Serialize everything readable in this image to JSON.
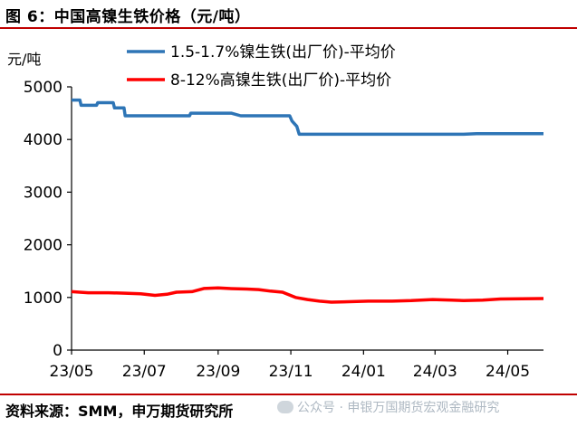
{
  "figure": {
    "title": "图 6：中国高镍生铁价格（元/吨）",
    "source": "资料来源：SMM，申万期货研究所",
    "watermark": "公众号 · 申银万国期货宏观金融研究",
    "watermark_icon": "wechat-icon"
  },
  "colors": {
    "series_1": "#2e75b6",
    "series_2": "#ff0000",
    "rule": "#c00000"
  },
  "chart_data": {
    "type": "line",
    "title": "",
    "ylabel": "元/吨",
    "xlabel": "",
    "ylim": [
      0,
      5000
    ],
    "yticks": [
      0,
      1000,
      2000,
      3000,
      4000,
      5000
    ],
    "xlim": [
      "2023-05-01",
      "2024-05-31"
    ],
    "xticks": [
      {
        "date": "2023-05-01",
        "label": "23/05"
      },
      {
        "date": "2023-07-01",
        "label": "23/07"
      },
      {
        "date": "2023-09-01",
        "label": "23/09"
      },
      {
        "date": "2023-11-01",
        "label": "23/11"
      },
      {
        "date": "2024-01-01",
        "label": "24/01"
      },
      {
        "date": "2024-03-01",
        "label": "24/03"
      },
      {
        "date": "2024-05-01",
        "label": "24/05"
      }
    ],
    "grid": false,
    "legend_position": "top",
    "series": [
      {
        "name": "1.5-1.7%镍生铁(出厂价)-平均价",
        "points": [
          [
            "2023-05-01",
            4750
          ],
          [
            "2023-05-08",
            4750
          ],
          [
            "2023-05-09",
            4650
          ],
          [
            "2023-05-22",
            4650
          ],
          [
            "2023-05-23",
            4700
          ],
          [
            "2023-06-05",
            4700
          ],
          [
            "2023-06-06",
            4600
          ],
          [
            "2023-06-14",
            4600
          ],
          [
            "2023-06-15",
            4450
          ],
          [
            "2023-08-08",
            4450
          ],
          [
            "2023-08-09",
            4500
          ],
          [
            "2023-09-12",
            4500
          ],
          [
            "2023-09-20",
            4450
          ],
          [
            "2023-10-31",
            4450
          ],
          [
            "2023-11-02",
            4350
          ],
          [
            "2023-11-06",
            4250
          ],
          [
            "2023-11-08",
            4100
          ],
          [
            "2024-02-20",
            4100
          ],
          [
            "2024-03-25",
            4100
          ],
          [
            "2024-04-05",
            4110
          ],
          [
            "2024-05-31",
            4110
          ]
        ]
      },
      {
        "name": "8-12%高镍生铁(出厂价)-平均价",
        "points": [
          [
            "2023-05-01",
            1110
          ],
          [
            "2023-05-15",
            1090
          ],
          [
            "2023-06-01",
            1090
          ],
          [
            "2023-06-15",
            1080
          ],
          [
            "2023-06-28",
            1070
          ],
          [
            "2023-07-10",
            1040
          ],
          [
            "2023-07-20",
            1060
          ],
          [
            "2023-07-28",
            1100
          ],
          [
            "2023-08-10",
            1110
          ],
          [
            "2023-08-20",
            1170
          ],
          [
            "2023-09-01",
            1180
          ],
          [
            "2023-09-10",
            1170
          ],
          [
            "2023-09-25",
            1160
          ],
          [
            "2023-10-05",
            1150
          ],
          [
            "2023-10-15",
            1120
          ],
          [
            "2023-10-25",
            1100
          ],
          [
            "2023-11-05",
            1000
          ],
          [
            "2023-11-15",
            960
          ],
          [
            "2023-11-25",
            930
          ],
          [
            "2023-12-05",
            910
          ],
          [
            "2023-12-20",
            920
          ],
          [
            "2024-01-05",
            930
          ],
          [
            "2024-01-25",
            930
          ],
          [
            "2024-02-10",
            940
          ],
          [
            "2024-02-28",
            960
          ],
          [
            "2024-03-15",
            950
          ],
          [
            "2024-03-25",
            940
          ],
          [
            "2024-04-10",
            950
          ],
          [
            "2024-04-25",
            970
          ],
          [
            "2024-05-31",
            980
          ]
        ]
      }
    ]
  }
}
